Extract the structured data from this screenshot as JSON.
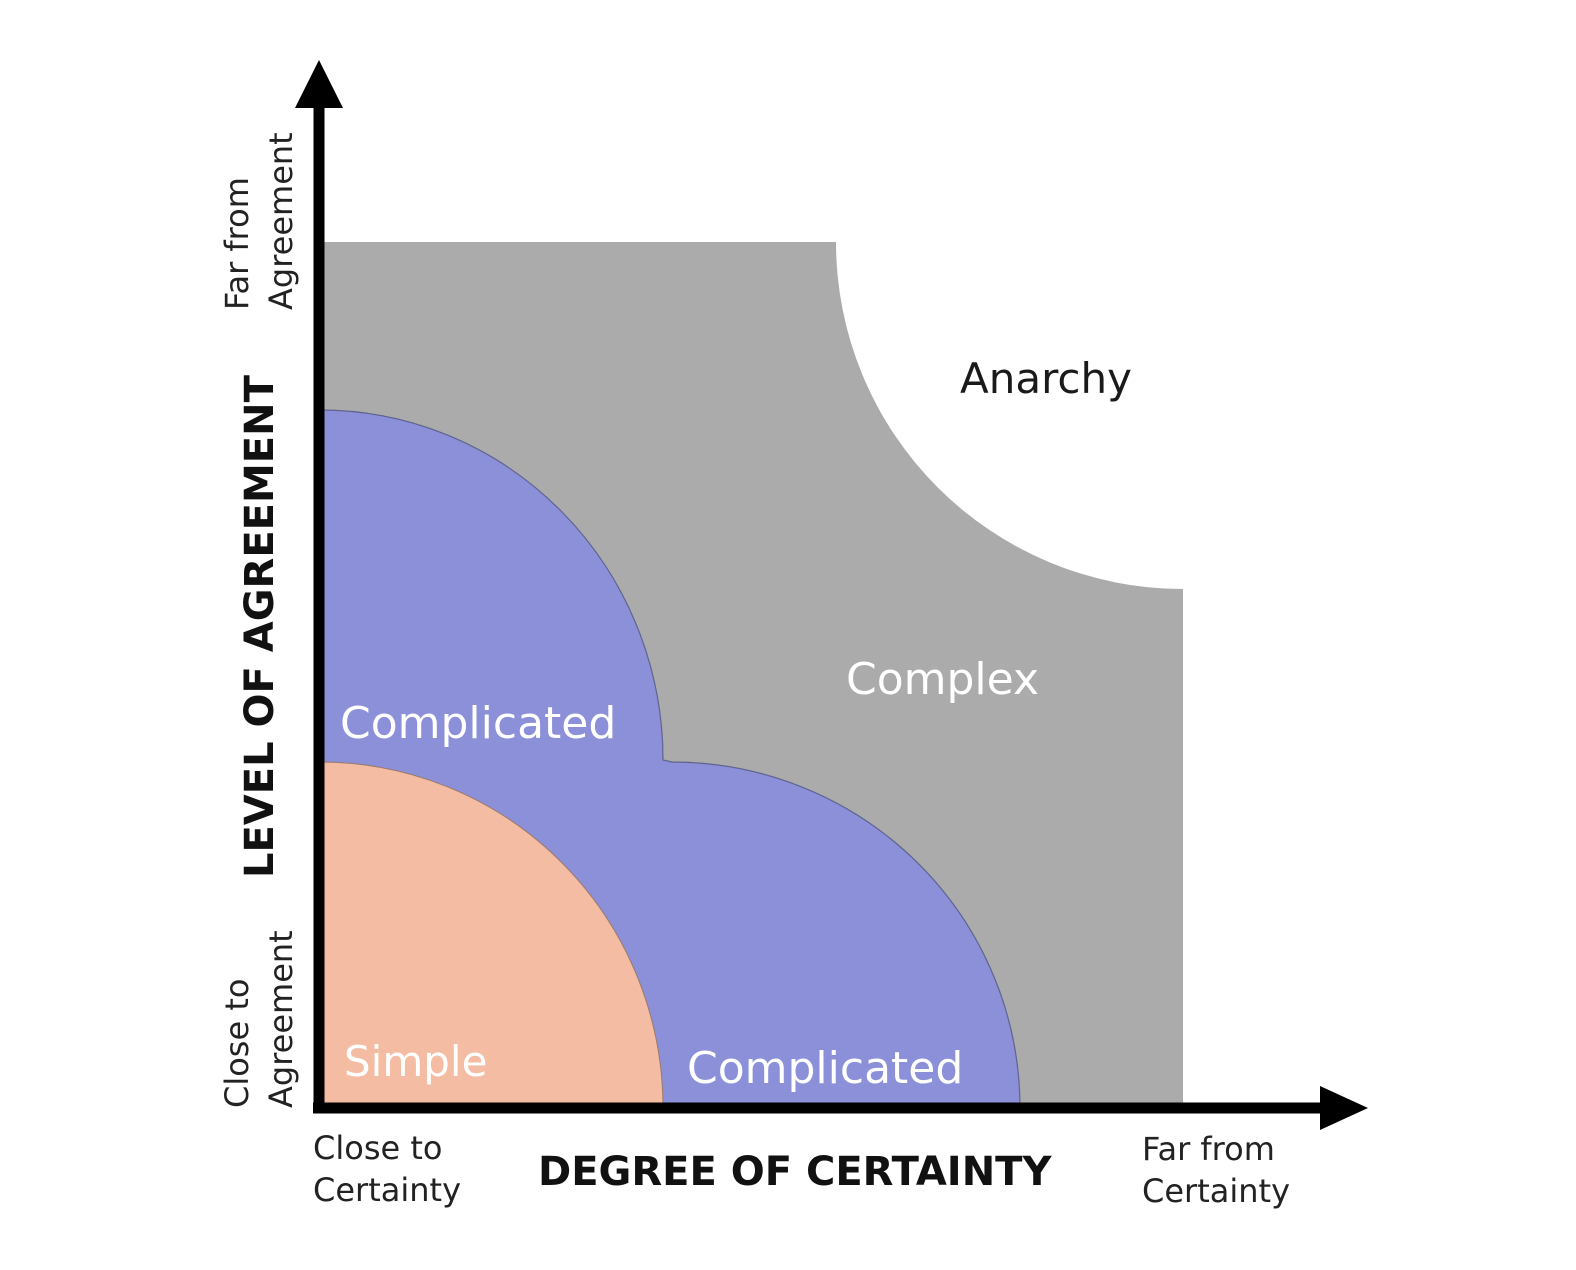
{
  "diagram": {
    "x_axis": {
      "title": "DEGREE OF CERTAINTY",
      "start_label": [
        "Close to",
        "Certainty"
      ],
      "end_label": [
        "Far from",
        "Certainty"
      ]
    },
    "y_axis": {
      "title": "LEVEL OF AGREEMENT",
      "start_label": [
        "Close to",
        "Agreement"
      ],
      "end_label": [
        "Far from",
        "Agreement"
      ]
    },
    "zones": {
      "simple": {
        "label": "Simple",
        "color": "#F4BCA2",
        "text_color": "#FFFFFF"
      },
      "complicated": {
        "label": "Complicated",
        "color": "#8B90D8",
        "text_color": "#FFFFFF"
      },
      "complex": {
        "label": "Complex",
        "color": "#ABABAB",
        "text_color": "#FFFFFF"
      },
      "anarchy": {
        "label": "Anarchy",
        "color": "#FFFFFF",
        "text_color": "#1A1A1A"
      }
    },
    "axis_color": "#000000"
  }
}
